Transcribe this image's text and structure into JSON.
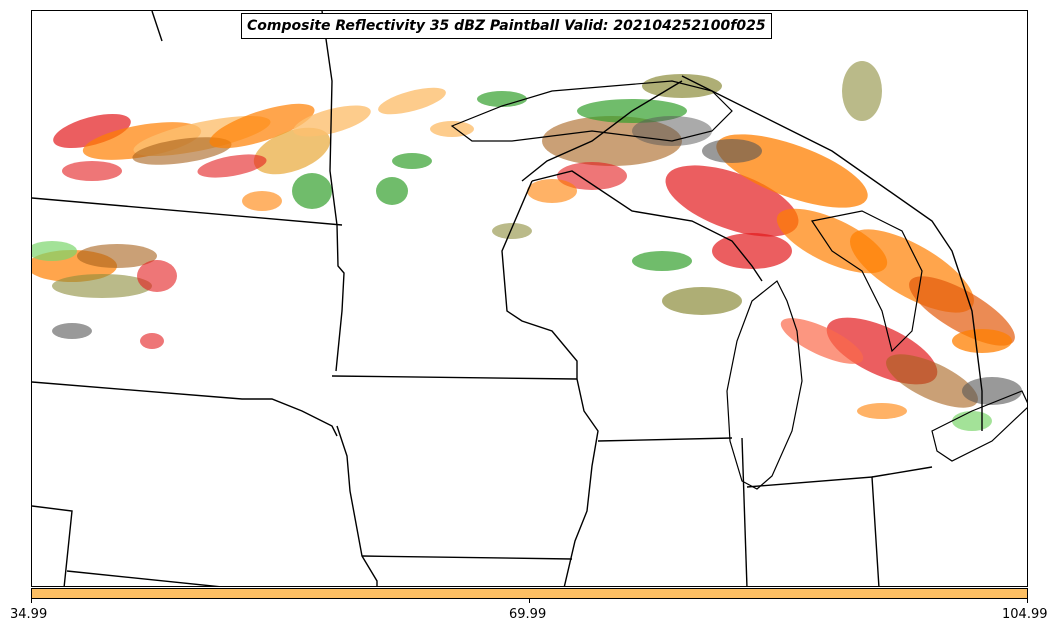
{
  "title": "Composite Reflectivity 35 dBZ Paintball Valid: 202104252100f025",
  "colorbar": {
    "color": "#fdbf63",
    "ticks": [
      "34.99",
      "69.99",
      "104.99"
    ]
  },
  "member_colors": [
    "#e31a1c",
    "#ff7f00",
    "#fdbf6f",
    "#33a02c",
    "#7cd66c",
    "#a6611a",
    "#8c8c3a",
    "#555555",
    "#b2df8a",
    "#fb6a4a"
  ]
}
